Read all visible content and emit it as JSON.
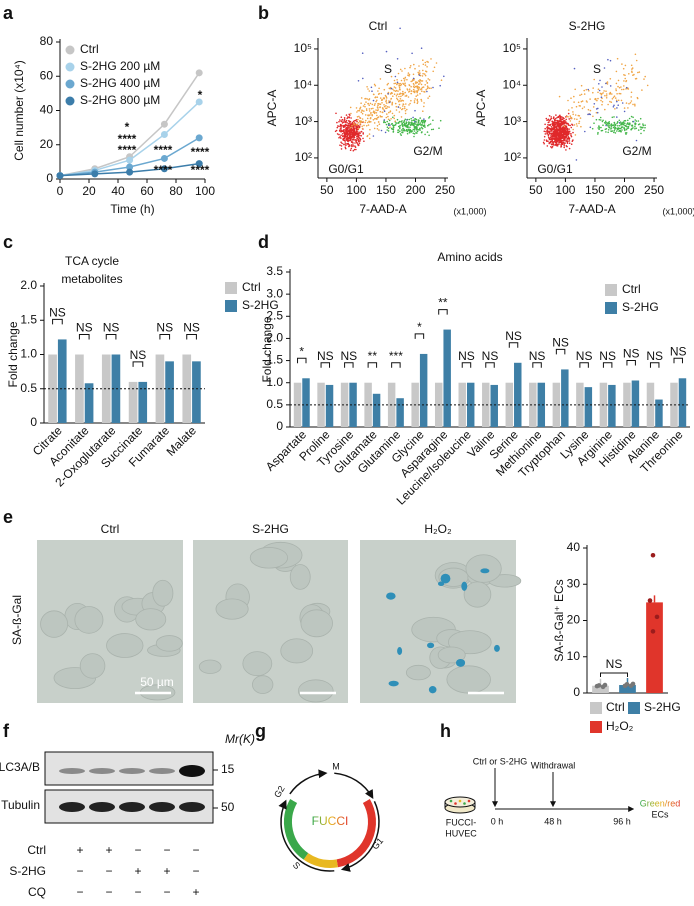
{
  "panel_letters": [
    "a",
    "b",
    "c",
    "d",
    "e",
    "f",
    "g",
    "h"
  ],
  "chart_data": [
    {
      "type": "line",
      "ylabel": "Cell number (x10⁴)",
      "xlabel": "Time (h)",
      "x": [
        0,
        24,
        48,
        72,
        96
      ],
      "xlim": [
        0,
        100
      ],
      "xticks": [
        0,
        20,
        40,
        60,
        80,
        100
      ],
      "ylim": [
        0,
        80
      ],
      "yticks": [
        0,
        20,
        40,
        60,
        80
      ],
      "series": [
        {
          "name": "Ctrl",
          "color": "#c6c6c6",
          "values": [
            2,
            6,
            13,
            32,
            62
          ]
        },
        {
          "name": "S-2HG 200 µM",
          "color": "#a8d2ea",
          "values": [
            2,
            5,
            11,
            26,
            45
          ]
        },
        {
          "name": "S-2HG 400 µM",
          "color": "#6ba8d0",
          "values": [
            2,
            4,
            7,
            12,
            24
          ]
        },
        {
          "name": "S-2HG 800 µM",
          "color": "#3c7daa",
          "values": [
            2,
            3,
            4,
            6,
            9
          ]
        }
      ],
      "annotations": [
        "*",
        "****",
        "****",
        "****",
        "****",
        "*",
        "****",
        "****"
      ]
    },
    {
      "type": "bar",
      "title_lines": [
        "TCA cycle",
        "metabolites"
      ],
      "ylabel": "Fold change",
      "categories": [
        "Citrate",
        "Aconitate",
        "2-Oxoglutarate",
        "Succinate",
        "Fumarate",
        "Malate"
      ],
      "series": [
        {
          "name": "Ctrl",
          "color": "#c8c8c8",
          "values": [
            1,
            1,
            1,
            0.6,
            1,
            1
          ]
        },
        {
          "name": "S-2HG",
          "color": "#3e7fa6",
          "values": [
            1.22,
            0.58,
            1,
            0.6,
            0.9,
            0.9
          ]
        }
      ],
      "ylim": [
        0,
        2
      ],
      "yticks": [
        0,
        0.5,
        {
          "value": 1,
          "label": "1.0"
        },
        1.5,
        {
          "value": 2,
          "label": "2.0"
        }
      ],
      "ref_line": 0.5,
      "significance": [
        "NS",
        "NS",
        "NS",
        "NS",
        "NS",
        "NS"
      ]
    },
    {
      "type": "bar",
      "title": "Amino acids",
      "ylabel": "Fold change",
      "categories": [
        "Aspartate",
        "Proline",
        "Tyrosine",
        "Glutamate",
        "Glutamine",
        "Glycine",
        "Asparagine",
        "Leucine/Isoleucine",
        "Valine",
        "Serine",
        "Methionine",
        "Tryptophan",
        "Lysine",
        "Arginine",
        "Histidine",
        "Alanine",
        "Threonine"
      ],
      "series": [
        {
          "name": "Ctrl",
          "color": "#c8c8c8",
          "values": [
            1,
            1,
            1,
            1,
            1,
            1,
            1,
            1,
            1,
            1,
            1,
            1,
            1,
            1,
            1,
            1,
            1
          ]
        },
        {
          "name": "S-2HG",
          "color": "#3e7fa6",
          "values": [
            1.1,
            0.95,
            1,
            0.75,
            0.65,
            1.65,
            2.2,
            1,
            0.95,
            1.45,
            1,
            1.3,
            0.9,
            0.95,
            1.05,
            0.62,
            1.1
          ]
        }
      ],
      "ylim": [
        0,
        3.5
      ],
      "yticks": [
        0,
        0.5,
        {
          "value": 1,
          "label": "1.0"
        },
        1.5,
        {
          "value": 2,
          "label": "2.0"
        },
        2.5,
        {
          "value": 3,
          "label": "3.0"
        },
        3.5
      ],
      "ref_line": 0.5,
      "significance": [
        "*",
        "NS",
        "NS",
        "**",
        "***",
        "*",
        "**",
        "NS",
        "NS",
        "NS",
        "NS",
        "NS",
        "NS",
        "NS",
        "NS",
        "NS",
        "NS"
      ]
    },
    {
      "type": "bar",
      "ylabel": "SA-ß-Gal⁺ ECs",
      "categories": [
        "Ctrl",
        "S-2HG",
        "H₂O₂"
      ],
      "values": [
        2,
        2.2,
        25
      ],
      "colors": [
        "#c8c8c8",
        "#3e7fa6",
        "#e0352b"
      ],
      "ylim": [
        0,
        40
      ],
      "yticks": [
        0,
        10,
        20,
        30,
        40
      ],
      "annotations": [
        "NS"
      ]
    },
    {
      "type": "flow",
      "title": "Ctrl",
      "ylabel": "APC-A",
      "xlabel": "7-AAD-A",
      "x_unit": "(x1,000)",
      "log": true,
      "ylim": [
        28,
        200000
      ],
      "yticks": [
        {
          "value": 100,
          "label": "10²"
        },
        {
          "value": 1000,
          "label": "10³"
        },
        {
          "value": 10000,
          "label": "10⁴"
        },
        {
          "value": 100000,
          "label": "10⁵"
        }
      ],
      "xlim": [
        35,
        255
      ],
      "xticks": [
        50,
        100,
        150,
        200,
        250
      ],
      "gates": [
        "S",
        "G2/M",
        "G0/G1"
      ]
    },
    {
      "type": "flow",
      "title": "S-2HG",
      "ylabel": "APC-A",
      "xlabel": "7-AAD-A",
      "x_unit": "(x1,000)",
      "log": true,
      "ylim": [
        28,
        200000
      ],
      "yticks": [
        {
          "value": 100,
          "label": "10²"
        },
        {
          "value": 1000,
          "label": "10³"
        },
        {
          "value": 10000,
          "label": "10⁴"
        },
        {
          "value": 100000,
          "label": "10⁵"
        }
      ],
      "xlim": [
        35,
        255
      ],
      "xticks": [
        50,
        100,
        150,
        200,
        250
      ],
      "gates": [
        "S",
        "G2/M",
        "G0/G1"
      ]
    }
  ],
  "micrographs": {
    "titles": [
      "Ctrl",
      "S-2HG",
      "H₂O₂"
    ],
    "row_label": "SA-ß-Gal",
    "scale_bar": "50 µm"
  },
  "blot": {
    "mr_label": "Mr(K)",
    "bands": [
      {
        "label": "LC3A/B",
        "mr": "15"
      },
      {
        "label": "Tubulin",
        "mr": "50"
      }
    ],
    "treatments": [
      {
        "label": "Ctrl",
        "signs": [
          "+",
          "+",
          "−",
          "−",
          "−"
        ]
      },
      {
        "label": "S-2HG",
        "signs": [
          "−",
          "−",
          "+",
          "+",
          "−"
        ]
      },
      {
        "label": "CQ",
        "signs": [
          "−",
          "−",
          "−",
          "−",
          "+"
        ]
      }
    ]
  },
  "fucci": {
    "center": "FUCCI",
    "phases": [
      "M",
      "G2",
      "S",
      "G1"
    ]
  },
  "timeline": {
    "treatment": "Ctrl or S-2HG",
    "cells": [
      "FUCCI-",
      "HUVEC"
    ],
    "withdrawal": "Withdrawal",
    "times": [
      "0 h",
      "48 h",
      "96 h"
    ],
    "readout": [
      "Green/red",
      "ECs"
    ]
  }
}
